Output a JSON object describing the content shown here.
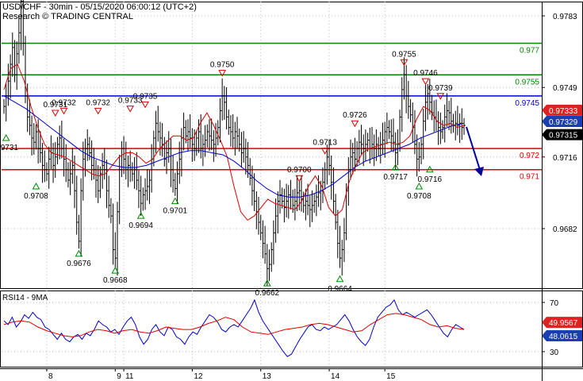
{
  "header": {
    "title": "USD/CHF - 30min - 05/15/2020 06:00:12 (UTC+2)",
    "credit": "Research © TRADING CENTRAL"
  },
  "colors": {
    "price": "#000000",
    "ma_fast": "#dd0000",
    "ma_slow": "#0000cc",
    "support_resistance": "#dd0000",
    "resistance_green": "#008800",
    "pivot_blue": "#0000cc",
    "arrow": "#000099",
    "grid": "#bbbbbb",
    "badge_red": "#dd2222",
    "badge_blue": "#1a3fb0",
    "badge_black": "#000000"
  },
  "chart_data": [
    {
      "type": "line",
      "title": "USD/CHF - 30min - 05/15/2020 06:00:12 (UTC+2)",
      "subtitle": "Research © TRADING CENTRAL",
      "x_labels": [
        "8",
        "9",
        "11",
        "12",
        "13",
        "14",
        "15"
      ],
      "y_ticks": [
        "0.9783",
        "0.9749",
        "0.9716",
        "0.9682"
      ],
      "ylim": [
        0.9652,
        0.9795
      ],
      "grid": true,
      "series": [
        {
          "kind": "price",
          "values": [
            0.974,
            0.9745,
            0.9752,
            0.976,
            0.9768,
            0.9755,
            0.9765,
            0.9775,
            0.979,
            0.977,
            0.9745,
            0.9735,
            0.9731,
            0.9725,
            0.9723,
            0.9728,
            0.972,
            0.9718,
            0.9712,
            0.971,
            0.9708,
            0.9715,
            0.9718,
            0.9712,
            0.9716,
            0.9722,
            0.9725,
            0.972,
            0.9715,
            0.971,
            0.9705,
            0.9708,
            0.9712,
            0.97,
            0.9685,
            0.9676,
            0.97,
            0.9715,
            0.972,
            0.9722,
            0.9718,
            0.9712,
            0.971,
            0.9705,
            0.97,
            0.9708,
            0.9712,
            0.971,
            0.97,
            0.9693,
            0.9688,
            0.9672,
            0.9668,
            0.969,
            0.971,
            0.972,
            0.9715,
            0.971,
            0.9712,
            0.971,
            0.9708,
            0.971,
            0.9705,
            0.97,
            0.9694,
            0.9698,
            0.97,
            0.9702,
            0.9705,
            0.9715,
            0.9725,
            0.9732,
            0.9728,
            0.9725,
            0.9722,
            0.9715,
            0.9718,
            0.972,
            0.971,
            0.9705,
            0.9701,
            0.9708,
            0.9715,
            0.9725,
            0.973,
            0.9726,
            0.9728,
            0.9725,
            0.9722,
            0.972,
            0.9725,
            0.9728,
            0.972,
            0.9722,
            0.9724,
            0.9728,
            0.9726,
            0.9724,
            0.9722,
            0.9725,
            0.973,
            0.9738,
            0.9745,
            0.9742,
            0.9735,
            0.973,
            0.9728,
            0.9725,
            0.9728,
            0.9726,
            0.9722,
            0.9718,
            0.972,
            0.9716,
            0.9712,
            0.9706,
            0.97,
            0.9695,
            0.969,
            0.9685,
            0.968,
            0.9675,
            0.967,
            0.9663,
            0.9665,
            0.9672,
            0.968,
            0.9688,
            0.9695,
            0.9698,
            0.9695,
            0.9692,
            0.9695,
            0.9698,
            0.9697,
            0.9693,
            0.9695,
            0.9699,
            0.97,
            0.9696,
            0.9693,
            0.9695,
            0.9693,
            0.9691,
            0.9693,
            0.9695,
            0.9697,
            0.9699,
            0.97,
            0.9704,
            0.971,
            0.9716,
            0.9712,
            0.9704,
            0.9695,
            0.9685,
            0.9675,
            0.9668,
            0.9672,
            0.968,
            0.97,
            0.971,
            0.9716,
            0.9718,
            0.9715,
            0.972,
            0.9723,
            0.9722,
            0.972,
            0.9722,
            0.9724,
            0.972,
            0.9722,
            0.972,
            0.9722,
            0.972,
            0.9722,
            0.9724,
            0.9728,
            0.973,
            0.9728,
            0.9726,
            0.9723,
            0.9718,
            0.9722,
            0.9735,
            0.9748,
            0.9755,
            0.9745,
            0.974,
            0.9736,
            0.973,
            0.9722,
            0.9715,
            0.9716,
            0.9722,
            0.9733,
            0.9742,
            0.9746,
            0.9742,
            0.9737,
            0.9735,
            0.9733,
            0.973,
            0.9728,
            0.973,
            0.9735,
            0.9738,
            0.9737,
            0.9733,
            0.9731,
            0.9732,
            0.9731,
            0.9732,
            0.973,
            0.9731
          ]
        },
        {
          "kind": "moving_average_fast",
          "values": [
            0.9748,
            0.9758,
            0.976,
            0.9752,
            0.974,
            0.973,
            0.9722,
            0.9718,
            0.9717,
            0.9716,
            0.9714,
            0.9712,
            0.971,
            0.9708,
            0.9707,
            0.9708,
            0.9712,
            0.9716,
            0.9718,
            0.9718,
            0.9716,
            0.9713,
            0.9715,
            0.972,
            0.9723,
            0.9726,
            0.9726,
            0.9724,
            0.9725,
            0.9732,
            0.9737,
            0.9731,
            0.9724,
            0.9716,
            0.9702,
            0.969,
            0.9686,
            0.9688,
            0.9692,
            0.9696,
            0.9694,
            0.9693,
            0.9692,
            0.9691,
            0.9695,
            0.9702,
            0.9707,
            0.9702,
            0.9692,
            0.9688,
            0.9691,
            0.9704,
            0.9712,
            0.9718,
            0.972,
            0.9721,
            0.9722,
            0.9723,
            0.9722,
            0.9723,
            0.9726,
            0.9734,
            0.974,
            0.9738,
            0.9733,
            0.9731,
            0.9732,
            0.973,
            0.9731
          ]
        },
        {
          "kind": "moving_average_slow",
          "values": [
            0.9745,
            0.9742,
            0.9739,
            0.9735,
            0.9731,
            0.9727,
            0.9723,
            0.9719,
            0.9716,
            0.9714,
            0.9712,
            0.9711,
            0.9711,
            0.9712,
            0.9714,
            0.9716,
            0.9718,
            0.9719,
            0.9719,
            0.9718,
            0.9717,
            0.9714,
            0.971,
            0.9705,
            0.9701,
            0.9698,
            0.9697,
            0.9697,
            0.9698,
            0.97,
            0.9703,
            0.9707,
            0.9711,
            0.9714,
            0.9716,
            0.9718,
            0.972,
            0.9722,
            0.9725,
            0.9727,
            0.9729,
            0.9731,
            0.9732
          ]
        }
      ],
      "horizontal_levels": [
        {
          "value": 0.977,
          "label": "0.977",
          "style": "green"
        },
        {
          "value": 0.9755,
          "label": "0.9755",
          "style": "green"
        },
        {
          "value": 0.9745,
          "label": "0.9745",
          "style": "blue"
        },
        {
          "value": 0.972,
          "label": "0.972",
          "style": "red"
        },
        {
          "value": 0.971,
          "label": "0.971",
          "style": "red"
        }
      ],
      "price_badges": [
        {
          "value": 0.97333,
          "label": "0.97333",
          "style": "red"
        },
        {
          "value": 0.97329,
          "label": "0.97329",
          "style": "blue"
        },
        {
          "value": 0.97315,
          "label": "0.97315",
          "style": "black"
        }
      ],
      "swing_markers": [
        {
          "index": 1,
          "label": "0.9731",
          "kind": "low"
        },
        {
          "index": 15,
          "label": "0.9708",
          "kind": "low"
        },
        {
          "index": 24,
          "label": "0.9731",
          "kind": "high"
        },
        {
          "index": 28,
          "label": "0.9732",
          "kind": "high"
        },
        {
          "index": 35,
          "label": "0.9676",
          "kind": "low"
        },
        {
          "index": 44,
          "label": "0.9732",
          "kind": "high"
        },
        {
          "index": 52,
          "label": "0.9668",
          "kind": "low"
        },
        {
          "index": 59,
          "label": "0.9733",
          "kind": "high"
        },
        {
          "index": 64,
          "label": "0.9694",
          "kind": "low"
        },
        {
          "index": 66,
          "label": "0.9735",
          "kind": "high"
        },
        {
          "index": 80,
          "label": "0.9701",
          "kind": "low"
        },
        {
          "index": 102,
          "label": "0.9750",
          "kind": "high"
        },
        {
          "index": 123,
          "label": "0.9662",
          "kind": "low"
        },
        {
          "index": 138,
          "label": "0.9700",
          "kind": "high"
        },
        {
          "index": 150,
          "label": "0.9713",
          "kind": "high"
        },
        {
          "index": 157,
          "label": "0.9664",
          "kind": "low"
        },
        {
          "index": 164,
          "label": "0.9726",
          "kind": "high"
        },
        {
          "index": 183,
          "label": "0.9717",
          "kind": "low"
        },
        {
          "index": 187,
          "label": "0.9755",
          "kind": "high"
        },
        {
          "index": 194,
          "label": "0.9708",
          "kind": "low"
        },
        {
          "index": 197,
          "label": "0.9746",
          "kind": "high"
        },
        {
          "index": 199,
          "label": "0.9716",
          "kind": "low"
        },
        {
          "index": 204,
          "label": "0.9739",
          "kind": "high"
        }
      ]
    },
    {
      "type": "line",
      "title": "RSI14 - 9MA",
      "y_ticks": [
        "70",
        "30"
      ],
      "ylim": [
        20,
        80
      ],
      "grid": true,
      "series": [
        {
          "kind": "rsi",
          "values": [
            55,
            52,
            58,
            50,
            54,
            60,
            57,
            62,
            58,
            56,
            50,
            48,
            44,
            40,
            45,
            40,
            38,
            42,
            44,
            40,
            45,
            43,
            48,
            55,
            52,
            50,
            46,
            48,
            44,
            50,
            55,
            58,
            52,
            42,
            36,
            40,
            48,
            52,
            46,
            43,
            50,
            48,
            42,
            40,
            36,
            42,
            46,
            44,
            50,
            55,
            60,
            58,
            54,
            48,
            46,
            50,
            52,
            50,
            55,
            60,
            65,
            72,
            62,
            55,
            50,
            45,
            40,
            35,
            30,
            26,
            28,
            34,
            40,
            45,
            50,
            52,
            48,
            47,
            50,
            48,
            50,
            52,
            56,
            60,
            55,
            48,
            42,
            38,
            35,
            40,
            50,
            58,
            62,
            66,
            68,
            72,
            64,
            60,
            62,
            60,
            58,
            60,
            62,
            64,
            60,
            55,
            50,
            45,
            42,
            48,
            52,
            50,
            48
          ]
        },
        {
          "kind": "ma9",
          "values": [
            52,
            54,
            55,
            54,
            50,
            47,
            45,
            43,
            42,
            43,
            46,
            48,
            47,
            45,
            47,
            48,
            46,
            45,
            47,
            50,
            49,
            48,
            48,
            50,
            53,
            55,
            58,
            56,
            50,
            46,
            45,
            44,
            46,
            48,
            49,
            50,
            52,
            53,
            52,
            50,
            48,
            46,
            47,
            52,
            56,
            60,
            61,
            60,
            58,
            56,
            52,
            50,
            51,
            49,
            48
          ]
        }
      ],
      "value_badges": [
        {
          "value": 49.9567,
          "label": "49.9567",
          "style": "red"
        },
        {
          "value": 48.0615,
          "label": "48.0615",
          "style": "blue"
        }
      ]
    }
  ]
}
